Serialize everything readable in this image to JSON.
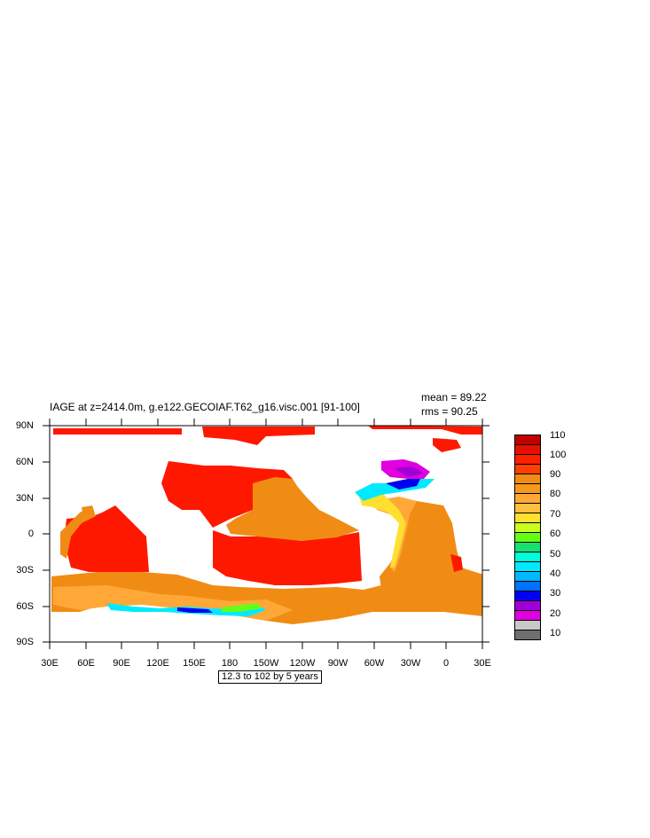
{
  "plot": {
    "title": "IAGE at z=2414.0m, g.e122.GECOIAF.T62_g16.visc.001 [91-100]",
    "mean_label": "mean = 89.22",
    "rms_label": "rms = 90.25",
    "contour_info": "12.3 to 102 by 5 years"
  },
  "axes": {
    "y_ticks": [
      "90N",
      "60N",
      "30N",
      "0",
      "30S",
      "60S",
      "90S"
    ],
    "x_ticks": [
      "30E",
      "60E",
      "90E",
      "120E",
      "150E",
      "180",
      "150W",
      "120W",
      "90W",
      "60W",
      "30W",
      "0",
      "30E"
    ]
  },
  "colorbar": {
    "labels": [
      "110",
      "100",
      "90",
      "80",
      "70",
      "60",
      "50",
      "40",
      "30",
      "20",
      "10"
    ],
    "colors": [
      "#c00000",
      "#e81000",
      "#ff4000",
      "#f08c14",
      "#ffa838",
      "#ffe030",
      "#64ff18",
      "#18e070",
      "#00ffd8",
      "#00eaff",
      "#00b8ff",
      "#0070ff",
      "#0000f0",
      "#a000d8",
      "#e000e0",
      "#c8c8c8",
      "#6e6e6e"
    ]
  },
  "legend": {
    "colors": {
      "old": "#ff1800",
      "mid": "#f08c14",
      "light": "#ffa838",
      "yellow": "#ffe030",
      "green": "#64ff18",
      "cyan": "#00eaff",
      "blue": "#00b8ff",
      "deepblue": "#0000f0",
      "purple": "#a000d8",
      "magenta": "#e000e0"
    }
  }
}
